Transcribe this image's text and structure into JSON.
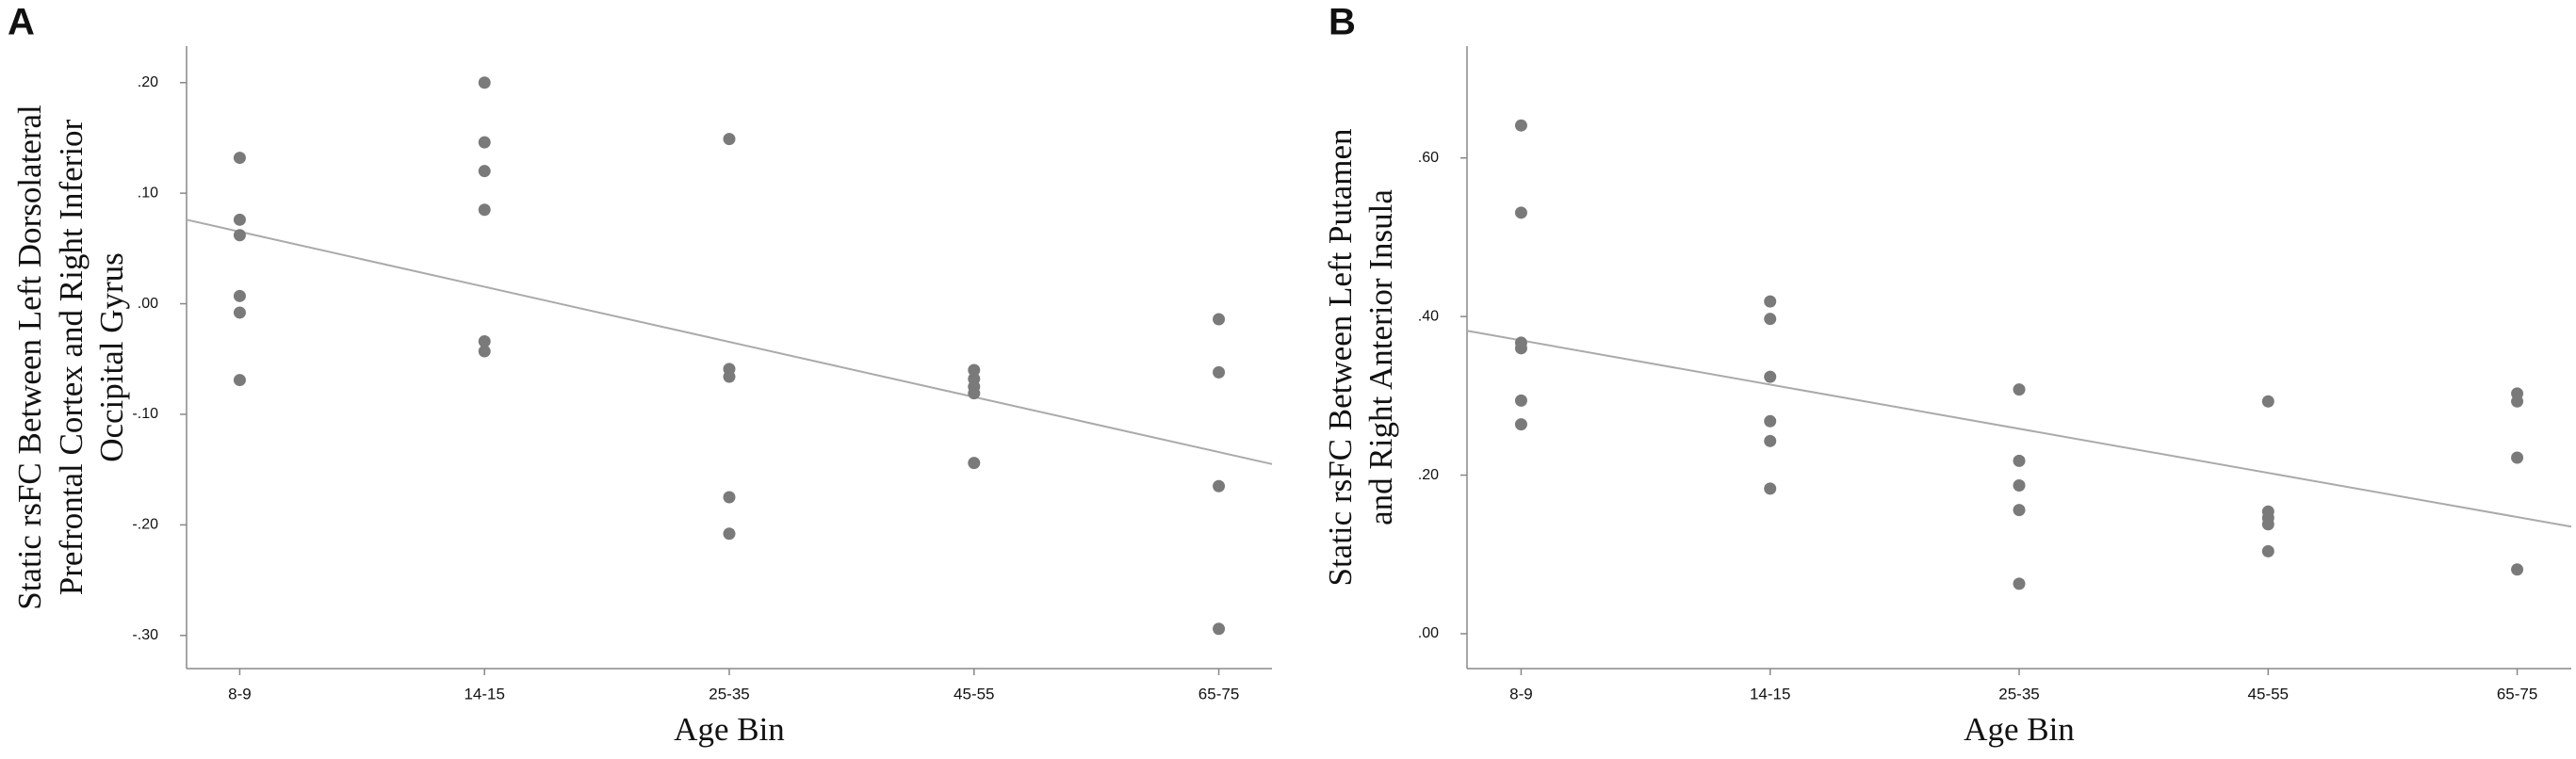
{
  "chart_data": [
    {
      "type": "scatter",
      "panel_label": "A",
      "y_label": [
        "Static rsFC Between Left Dorsolateral",
        "Prefrontal Cortex and Right Inferior",
        "Occipital Gyrus"
      ],
      "x_label": "Age Bin",
      "categories": [
        "8-9",
        "14-15",
        "25-35",
        "45-55",
        "65-75"
      ],
      "points": [
        [
          0.132,
          0.076,
          0.062,
          0.007,
          -0.008,
          -0.069
        ],
        [
          0.2,
          0.146,
          0.12,
          0.085,
          -0.034,
          -0.043
        ],
        [
          0.149,
          -0.059,
          -0.066,
          -0.175,
          -0.208
        ],
        [
          -0.06,
          -0.068,
          -0.075,
          -0.081,
          -0.144
        ],
        [
          -0.014,
          -0.062,
          -0.165,
          -0.294
        ]
      ],
      "color": "#7a7a7a",
      "fit_line": [
        0.076,
        -0.145
      ],
      "fit_color": "#aaaaaa",
      "ylim": [
        -0.33,
        0.233
      ],
      "yticks": [
        {
          "value": 0.2,
          "label": ".20"
        },
        {
          "value": 0.1,
          "label": ".10"
        },
        {
          "value": 0,
          "label": ".00"
        },
        {
          "value": -0.1,
          "label": "-.10"
        },
        {
          "value": -0.2,
          "label": "-.20"
        },
        {
          "value": -0.3,
          "label": "-.30"
        }
      ]
    },
    {
      "type": "scatter",
      "panel_label": "B",
      "y_label": [
        "Static rsFC Between Left Putamen",
        "and Right Anterior Insula"
      ],
      "x_label": "Age Bin",
      "categories": [
        "8-9",
        "14-15",
        "25-35",
        "45-55",
        "65-75"
      ],
      "points": [
        [
          0.641,
          0.531,
          0.367,
          0.36,
          0.294,
          0.264
        ],
        [
          0.419,
          0.397,
          0.324,
          0.268,
          0.243,
          0.183
        ],
        [
          0.308,
          0.218,
          0.187,
          0.156,
          0.063
        ],
        [
          0.293,
          0.154,
          0.146,
          0.138,
          0.104
        ],
        [
          0.303,
          0.293,
          0.222,
          0.081
        ]
      ],
      "color": "#7a7a7a",
      "fit_line": [
        0.382,
        0.135
      ],
      "fit_color": "#aaaaaa",
      "ylim": [
        -0.044,
        0.741
      ],
      "yticks": [
        {
          "value": 0.6,
          "label": ".60"
        },
        {
          "value": 0.4,
          "label": ".40"
        },
        {
          "value": 0.2,
          "label": ".20"
        },
        {
          "value": 0,
          "label": ".00"
        }
      ]
    }
  ]
}
